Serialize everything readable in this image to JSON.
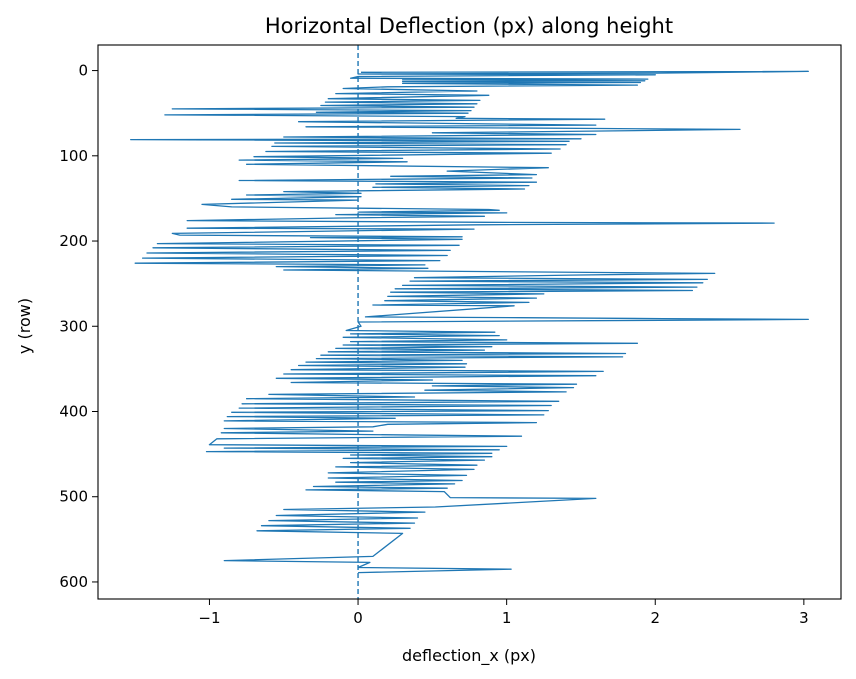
{
  "chart_data": {
    "type": "line",
    "title": "Horizontal Deflection (px) along height",
    "xlabel": "deflection_x (px)",
    "ylabel": "y (row)",
    "xlim": [
      -1.75,
      3.25
    ],
    "ylim": [
      620,
      -30
    ],
    "y_inverted": true,
    "x_ticks": [
      -1,
      0,
      1,
      2,
      3
    ],
    "x_tick_labels": [
      "−1",
      "0",
      "1",
      "2",
      "3"
    ],
    "y_ticks": [
      0,
      100,
      200,
      300,
      400,
      500,
      600
    ],
    "y_tick_labels": [
      "0",
      "100",
      "200",
      "300",
      "400",
      "500",
      "600"
    ],
    "grid": false,
    "reference_line": {
      "x": 0,
      "style": "dashed"
    },
    "series": [
      {
        "color": "#1f77b4",
        "points": [
          [
            0.02,
            2
          ],
          [
            3.03,
            1
          ],
          [
            2.02,
            3
          ],
          [
            0.0,
            4
          ],
          [
            2.0,
            5
          ],
          [
            0.0,
            7
          ],
          [
            -0.05,
            9
          ],
          [
            1.95,
            10
          ],
          [
            0.3,
            11
          ],
          [
            1.93,
            12
          ],
          [
            0.3,
            13
          ],
          [
            1.9,
            14
          ],
          [
            0.3,
            15
          ],
          [
            1.88,
            17
          ],
          [
            0.2,
            19
          ],
          [
            -0.1,
            21
          ],
          [
            0.8,
            24
          ],
          [
            -0.15,
            27
          ],
          [
            0.88,
            29
          ],
          [
            -0.2,
            33
          ],
          [
            0.82,
            35
          ],
          [
            -0.22,
            37
          ],
          [
            0.8,
            39
          ],
          [
            -0.25,
            41
          ],
          [
            0.78,
            43
          ],
          [
            -1.25,
            45
          ],
          [
            0.76,
            47
          ],
          [
            -0.28,
            49
          ],
          [
            0.74,
            50
          ],
          [
            -1.3,
            52
          ],
          [
            0.72,
            54
          ],
          [
            0.66,
            56
          ],
          [
            1.66,
            57
          ],
          [
            -0.4,
            60
          ],
          [
            0.58,
            62
          ],
          [
            1.6,
            64
          ],
          [
            -0.35,
            66
          ],
          [
            1.64,
            68
          ],
          [
            2.57,
            69
          ],
          [
            1.57,
            71
          ],
          [
            0.5,
            73
          ],
          [
            1.6,
            75
          ],
          [
            -0.5,
            78
          ],
          [
            1.5,
            80
          ],
          [
            -1.53,
            81
          ],
          [
            1.42,
            83
          ],
          [
            -0.56,
            85
          ],
          [
            1.4,
            87
          ],
          [
            -0.58,
            89
          ],
          [
            1.36,
            92
          ],
          [
            -0.62,
            95
          ],
          [
            1.3,
            97
          ],
          [
            -0.7,
            101
          ],
          [
            0.3,
            103
          ],
          [
            -0.8,
            105
          ],
          [
            0.33,
            107
          ],
          [
            -0.75,
            110
          ],
          [
            1.28,
            114
          ],
          [
            0.6,
            118
          ],
          [
            1.2,
            122
          ],
          [
            0.22,
            124
          ],
          [
            1.17,
            126
          ],
          [
            -0.8,
            129
          ],
          [
            1.2,
            131
          ],
          [
            0.12,
            133
          ],
          [
            1.15,
            135
          ],
          [
            0.1,
            137
          ],
          [
            1.12,
            139
          ],
          [
            -0.5,
            142
          ],
          [
            0.02,
            144
          ],
          [
            -0.75,
            146
          ],
          [
            0.02,
            148
          ],
          [
            -0.85,
            151
          ],
          [
            0.0,
            152
          ],
          [
            -1.05,
            157
          ],
          [
            -0.85,
            160
          ],
          [
            0.88,
            163
          ],
          [
            0.95,
            164
          ],
          [
            0.0,
            166
          ],
          [
            1.0,
            167
          ],
          [
            -0.15,
            169
          ],
          [
            0.85,
            171
          ],
          [
            -0.12,
            173
          ],
          [
            -1.15,
            176
          ],
          [
            0.86,
            178
          ],
          [
            2.8,
            179
          ],
          [
            1.8,
            180
          ],
          [
            0.8,
            181
          ],
          [
            -1.15,
            185
          ],
          [
            0.78,
            186
          ],
          [
            -1.25,
            191
          ],
          [
            -1.2,
            193
          ],
          [
            0.7,
            195
          ],
          [
            -0.32,
            196
          ],
          [
            0.7,
            198
          ],
          [
            -1.35,
            203
          ],
          [
            0.68,
            205
          ],
          [
            -1.38,
            208
          ],
          [
            0.62,
            211
          ],
          [
            -1.42,
            214
          ],
          [
            0.6,
            217
          ],
          [
            -1.45,
            220
          ],
          [
            0.55,
            223
          ],
          [
            -1.5,
            226
          ],
          [
            0.45,
            228
          ],
          [
            -0.55,
            230
          ],
          [
            0.47,
            232
          ],
          [
            -0.5,
            234
          ],
          [
            2.4,
            238
          ],
          [
            1.43,
            240
          ],
          [
            0.38,
            243
          ],
          [
            2.35,
            245
          ],
          [
            0.35,
            247
          ],
          [
            2.32,
            249
          ],
          [
            0.3,
            252
          ],
          [
            2.28,
            254
          ],
          [
            0.25,
            256
          ],
          [
            2.25,
            258
          ],
          [
            0.22,
            260
          ],
          [
            1.25,
            262
          ],
          [
            0.2,
            265
          ],
          [
            1.2,
            267
          ],
          [
            0.18,
            270
          ],
          [
            1.15,
            272
          ],
          [
            0.1,
            275
          ],
          [
            1.05,
            276
          ],
          [
            0.05,
            289
          ],
          [
            1.1,
            290
          ],
          [
            2.05,
            291
          ],
          [
            3.03,
            292
          ],
          [
            2.03,
            293
          ],
          [
            0.0,
            295
          ],
          [
            0.02,
            300
          ],
          [
            -0.08,
            305
          ],
          [
            0.92,
            307
          ],
          [
            -0.05,
            309
          ],
          [
            0.95,
            311
          ],
          [
            -0.1,
            313
          ],
          [
            1.0,
            316
          ],
          [
            -0.05,
            318
          ],
          [
            1.88,
            320
          ],
          [
            -0.1,
            322
          ],
          [
            0.9,
            324
          ],
          [
            -0.15,
            326
          ],
          [
            0.85,
            328
          ],
          [
            -0.2,
            330
          ],
          [
            1.8,
            332
          ],
          [
            -0.25,
            334
          ],
          [
            1.78,
            336
          ],
          [
            -0.28,
            338
          ],
          [
            0.7,
            340
          ],
          [
            -0.35,
            342
          ],
          [
            0.73,
            344
          ],
          [
            -0.4,
            346
          ],
          [
            0.72,
            348
          ],
          [
            -0.45,
            351
          ],
          [
            1.65,
            353
          ],
          [
            -0.5,
            356
          ],
          [
            1.6,
            358
          ],
          [
            -0.55,
            361
          ],
          [
            0.5,
            363
          ],
          [
            -0.45,
            366
          ],
          [
            1.47,
            368
          ],
          [
            0.5,
            370
          ],
          [
            1.45,
            372
          ],
          [
            0.45,
            375
          ],
          [
            1.4,
            377
          ],
          [
            -0.6,
            380
          ],
          [
            0.38,
            383
          ],
          [
            -0.75,
            385
          ],
          [
            1.35,
            388
          ],
          [
            -0.78,
            391
          ],
          [
            1.3,
            393
          ],
          [
            -0.8,
            396
          ],
          [
            1.28,
            399
          ],
          [
            -0.85,
            401
          ],
          [
            1.25,
            404
          ],
          [
            -0.88,
            406
          ],
          [
            0.25,
            408
          ],
          [
            -0.9,
            411
          ],
          [
            1.2,
            413
          ],
          [
            0.2,
            415
          ],
          [
            0.1,
            418
          ],
          [
            -0.9,
            420
          ],
          [
            0.1,
            423
          ],
          [
            -0.92,
            425
          ],
          [
            0.02,
            427
          ],
          [
            1.1,
            429
          ],
          [
            -0.95,
            432
          ],
          [
            -1.0,
            439
          ],
          [
            1.0,
            441
          ],
          [
            -0.9,
            443
          ],
          [
            0.95,
            445
          ],
          [
            -1.02,
            447
          ],
          [
            0.9,
            449
          ],
          [
            -0.05,
            451
          ],
          [
            0.9,
            453
          ],
          [
            -0.1,
            455
          ],
          [
            0.85,
            457
          ],
          [
            -0.05,
            460
          ],
          [
            0.8,
            463
          ],
          [
            -0.15,
            465
          ],
          [
            0.78,
            468
          ],
          [
            -0.2,
            472
          ],
          [
            0.73,
            475
          ],
          [
            -0.2,
            478
          ],
          [
            0.7,
            481
          ],
          [
            -0.15,
            483
          ],
          [
            0.65,
            485
          ],
          [
            -0.3,
            488
          ],
          [
            0.6,
            490
          ],
          [
            -0.35,
            492
          ],
          [
            0.58,
            494
          ],
          [
            0.62,
            501
          ],
          [
            1.6,
            502
          ],
          [
            0.52,
            512
          ],
          [
            -0.5,
            515
          ],
          [
            0.45,
            518
          ],
          [
            -0.55,
            522
          ],
          [
            0.4,
            525
          ],
          [
            -0.6,
            528
          ],
          [
            0.38,
            531
          ],
          [
            -0.65,
            534
          ],
          [
            0.35,
            537
          ],
          [
            -0.68,
            540
          ],
          [
            0.3,
            543
          ],
          [
            0.1,
            570
          ],
          [
            -0.9,
            575
          ],
          [
            0.08,
            577
          ],
          [
            0.0,
            583
          ],
          [
            1.03,
            585
          ],
          [
            0.0,
            589
          ]
        ]
      }
    ]
  }
}
